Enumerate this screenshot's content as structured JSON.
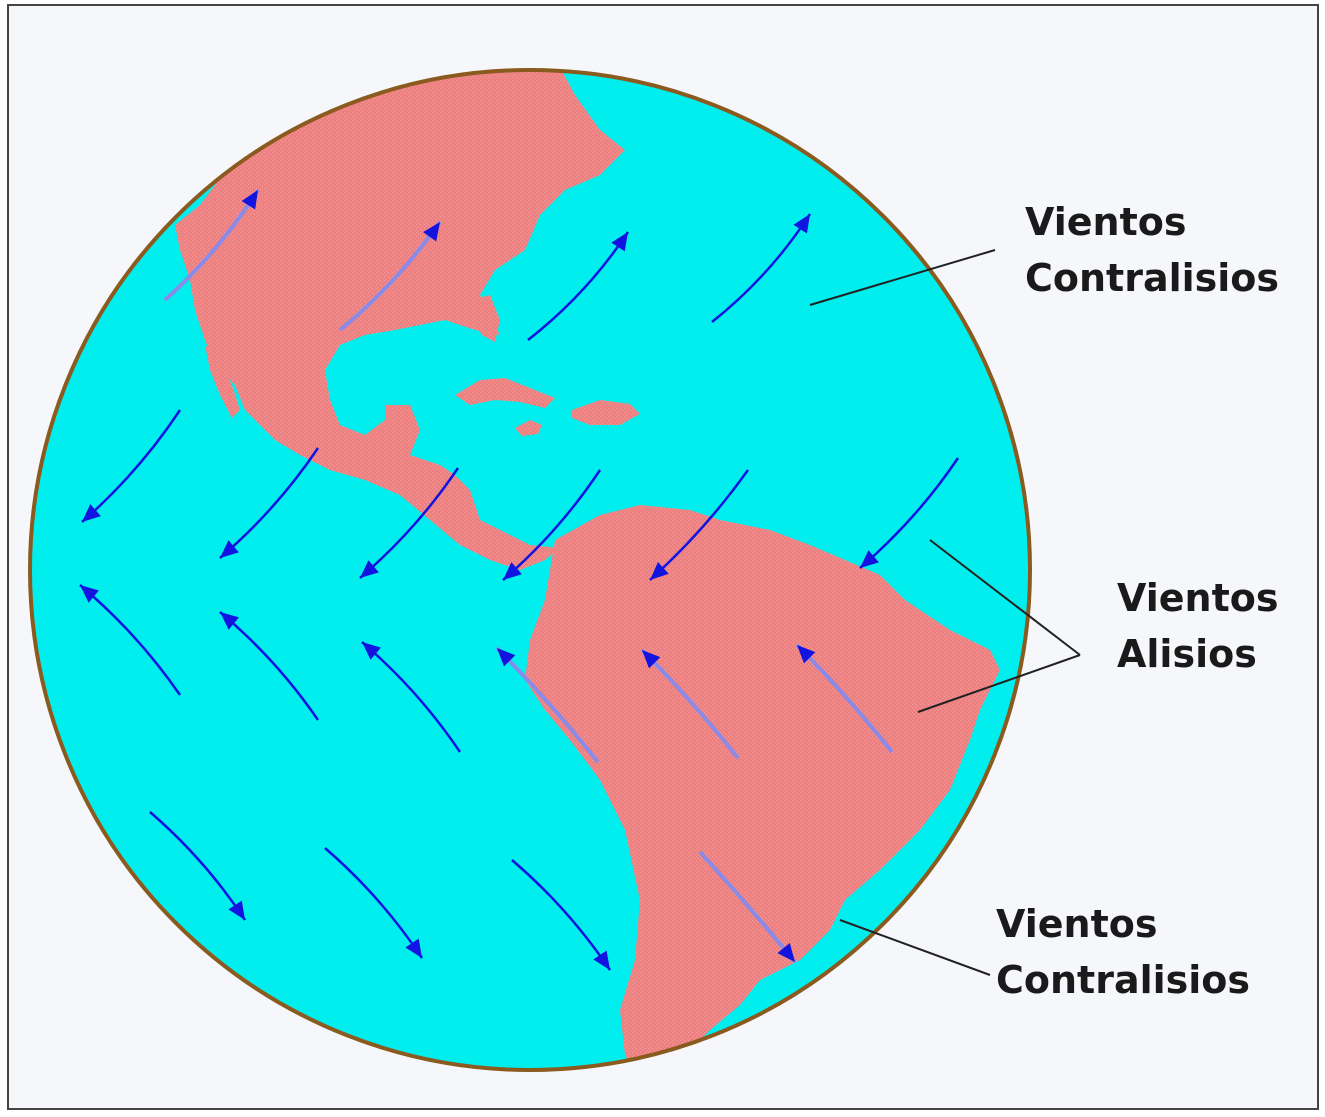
{
  "colors": {
    "background": "#f6f7fa",
    "frame": "#444444",
    "ocean": "#00eeee",
    "globe_outline": "#8a5a1e",
    "land": "#f08080",
    "wind_arrow": "#1414e0",
    "wind_arrow_on_land": "#8a8ae8",
    "leader_line": "#222222"
  },
  "labels": {
    "top": {
      "line1": "Vientos",
      "line2": "Contralisios"
    },
    "middle": {
      "line1": "Vientos",
      "line2": "Alisios"
    },
    "bottom": {
      "line1": "Vientos",
      "line2": "Contralisios"
    }
  },
  "icons": [
    "north-america-landmass",
    "south-america-landmass",
    "caribbean-islands",
    "wind-arrow"
  ]
}
